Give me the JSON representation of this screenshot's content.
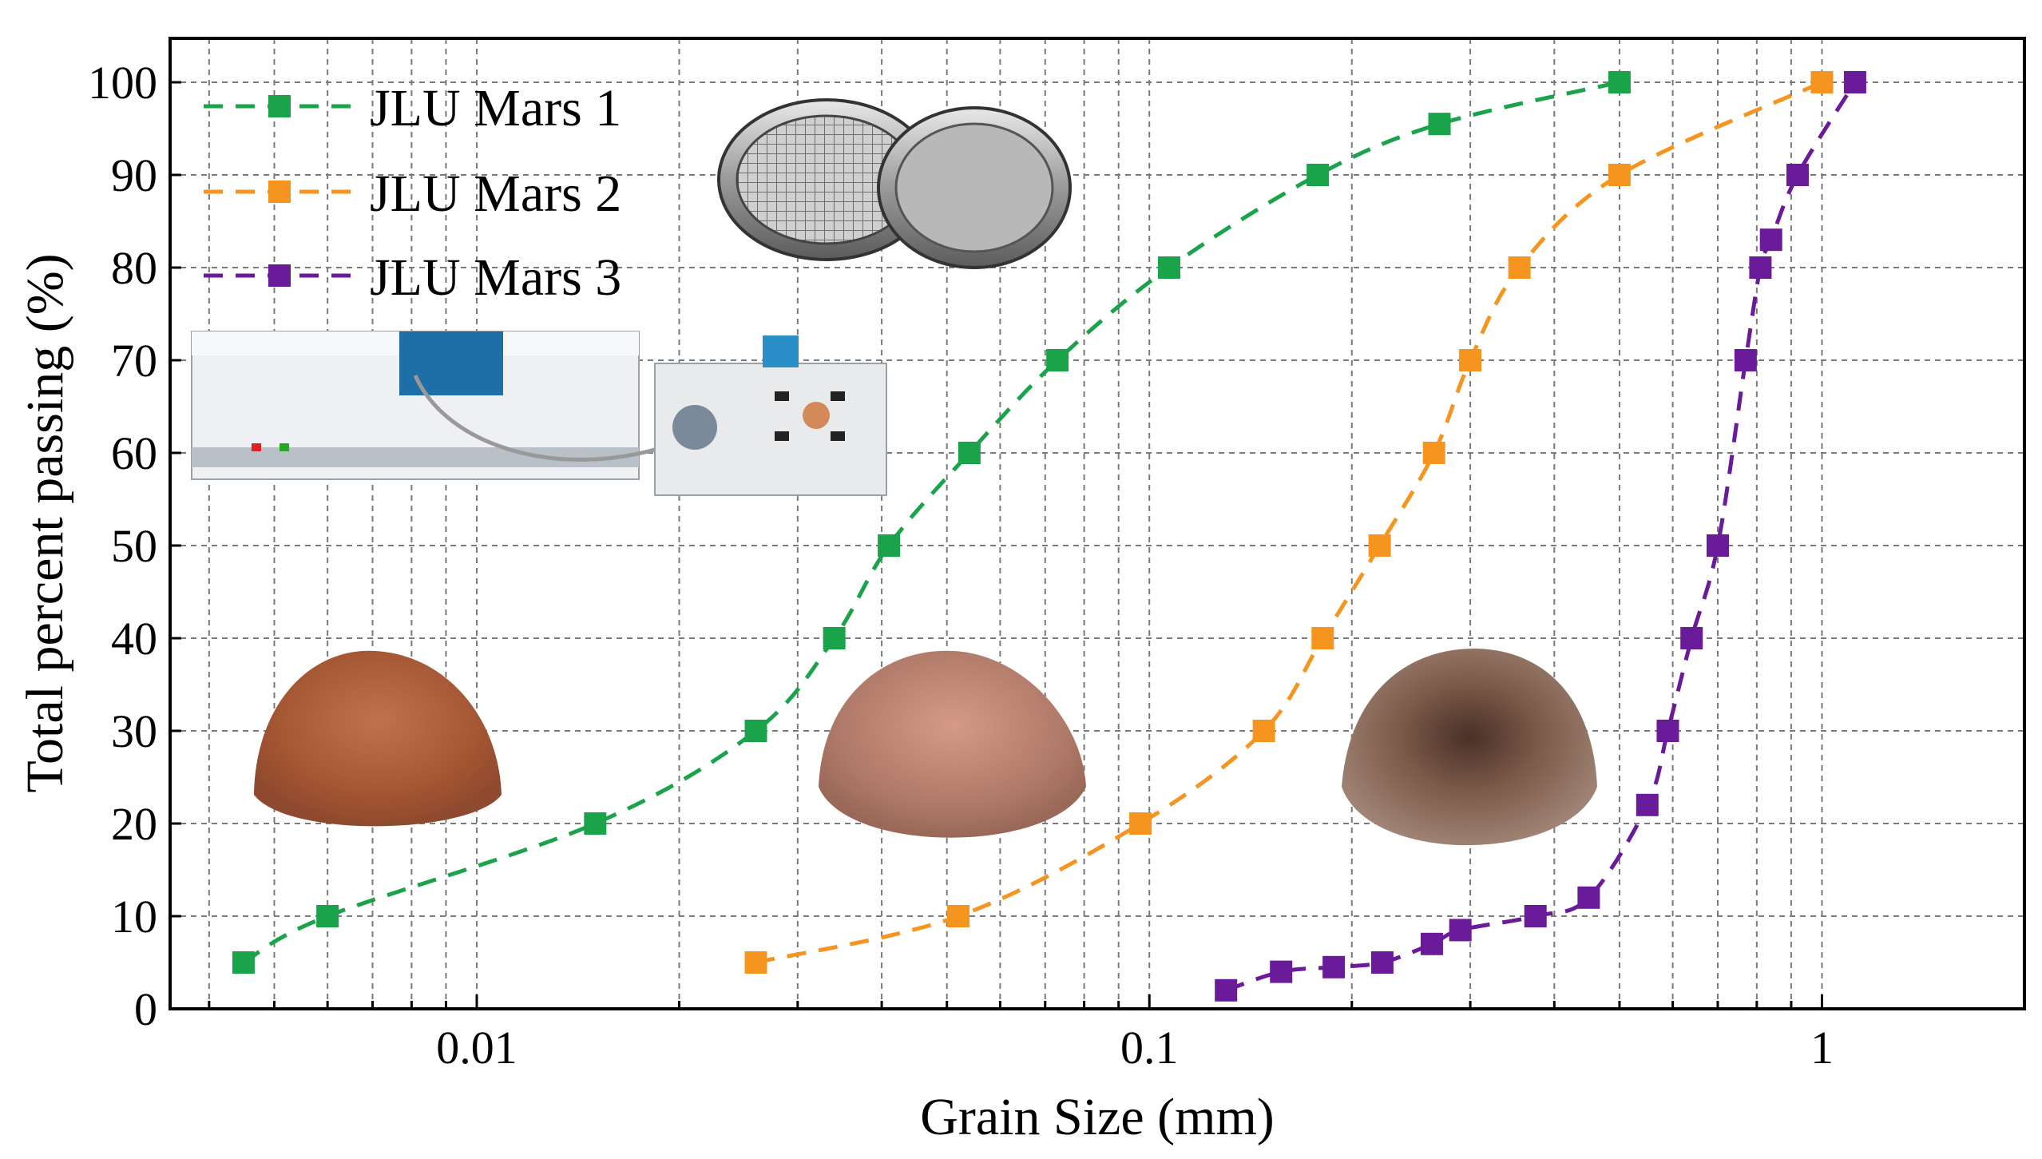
{
  "chart_data": {
    "type": "line",
    "xscale": "log",
    "xlim": [
      0.0035,
      2.0
    ],
    "ylim": [
      0,
      100
    ],
    "xlabel": "Grain Size (mm)",
    "ylabel": "Total percent passing (%)",
    "x_tick_labels": [
      {
        "value": 0.01,
        "label": "0.01"
      },
      {
        "value": 0.1,
        "label": "0.1"
      },
      {
        "value": 1,
        "label": "1"
      }
    ],
    "y_tick_labels": [
      {
        "value": 0,
        "label": "0"
      },
      {
        "value": 10,
        "label": "10"
      },
      {
        "value": 20,
        "label": "20"
      },
      {
        "value": 30,
        "label": "30"
      },
      {
        "value": 40,
        "label": "40"
      },
      {
        "value": 50,
        "label": "50"
      },
      {
        "value": 60,
        "label": "60"
      },
      {
        "value": 70,
        "label": "70"
      },
      {
        "value": 80,
        "label": "80"
      },
      {
        "value": 90,
        "label": "90"
      },
      {
        "value": 100,
        "label": "100"
      }
    ],
    "grid": true,
    "legend_position": "top-left",
    "series": [
      {
        "name": "JLU Mars 1",
        "color": "#1aa34a",
        "line_style": "dashed",
        "marker": "square",
        "points": [
          {
            "x": 0.0045,
            "y": 5
          },
          {
            "x": 0.006,
            "y": 10
          },
          {
            "x": 0.015,
            "y": 20
          },
          {
            "x": 0.026,
            "y": 30
          },
          {
            "x": 0.034,
            "y": 40
          },
          {
            "x": 0.041,
            "y": 50
          },
          {
            "x": 0.054,
            "y": 60
          },
          {
            "x": 0.073,
            "y": 70
          },
          {
            "x": 0.107,
            "y": 80
          },
          {
            "x": 0.178,
            "y": 90
          },
          {
            "x": 0.27,
            "y": 95.5
          },
          {
            "x": 0.5,
            "y": 100
          }
        ]
      },
      {
        "name": "JLU Mars 2",
        "color": "#f5941e",
        "line_style": "dashed",
        "marker": "square",
        "points": [
          {
            "x": 0.026,
            "y": 5
          },
          {
            "x": 0.052,
            "y": 10
          },
          {
            "x": 0.097,
            "y": 20
          },
          {
            "x": 0.148,
            "y": 30
          },
          {
            "x": 0.181,
            "y": 40
          },
          {
            "x": 0.22,
            "y": 50
          },
          {
            "x": 0.265,
            "y": 60
          },
          {
            "x": 0.3,
            "y": 70
          },
          {
            "x": 0.355,
            "y": 80
          },
          {
            "x": 0.5,
            "y": 90
          },
          {
            "x": 1.0,
            "y": 100
          }
        ]
      },
      {
        "name": "JLU Mars 3",
        "color": "#6a1b9a",
        "line_style": "dashed",
        "marker": "square",
        "points": [
          {
            "x": 0.13,
            "y": 2
          },
          {
            "x": 0.157,
            "y": 4
          },
          {
            "x": 0.188,
            "y": 4.5
          },
          {
            "x": 0.222,
            "y": 5
          },
          {
            "x": 0.263,
            "y": 7
          },
          {
            "x": 0.29,
            "y": 8.5
          },
          {
            "x": 0.375,
            "y": 10
          },
          {
            "x": 0.45,
            "y": 12
          },
          {
            "x": 0.55,
            "y": 22
          },
          {
            "x": 0.59,
            "y": 30
          },
          {
            "x": 0.64,
            "y": 40
          },
          {
            "x": 0.7,
            "y": 50
          },
          {
            "x": 0.77,
            "y": 70
          },
          {
            "x": 0.81,
            "y": 80
          },
          {
            "x": 0.84,
            "y": 83
          },
          {
            "x": 0.92,
            "y": 90
          },
          {
            "x": 1.12,
            "y": 100
          }
        ]
      }
    ],
    "images": [
      {
        "name": "sieve-photo"
      },
      {
        "name": "laser-particle-analyzer-photo"
      },
      {
        "name": "jlu-mars-1-powder-photo",
        "color": "#a95a3a"
      },
      {
        "name": "jlu-mars-2-powder-photo",
        "color": "#b47a66"
      },
      {
        "name": "jlu-mars-3-powder-photo",
        "color": "#8a6a58"
      }
    ]
  }
}
